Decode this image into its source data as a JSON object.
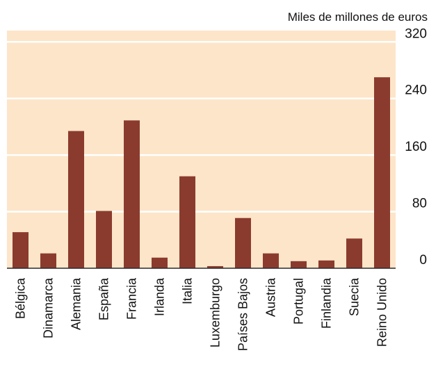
{
  "chart_data": {
    "type": "bar",
    "unit_label": "Miles de millones de euros",
    "categories": [
      "Bélgica",
      "Dinamarca",
      "Alemania",
      "España",
      "Francia",
      "Irlanda",
      "Italia",
      "Luxemburgo",
      "Países Bajos",
      "Austria",
      "Portugal",
      "Finlandia",
      "Suecia",
      "Reino Unido"
    ],
    "values": [
      51,
      21,
      194,
      81,
      209,
      15,
      130,
      3,
      71,
      21,
      10,
      11,
      42,
      270
    ],
    "ylim": [
      0,
      336
    ],
    "yticks": [
      0,
      80,
      160,
      240,
      320
    ],
    "ytick_labels": [
      "0",
      "80",
      "160",
      "240",
      "320"
    ],
    "grid": true,
    "colors": {
      "bar": "#8b3b2e",
      "plot_background": "#fde5c9",
      "gridline": "#ffffff",
      "axis": "#2a2a2a"
    }
  }
}
